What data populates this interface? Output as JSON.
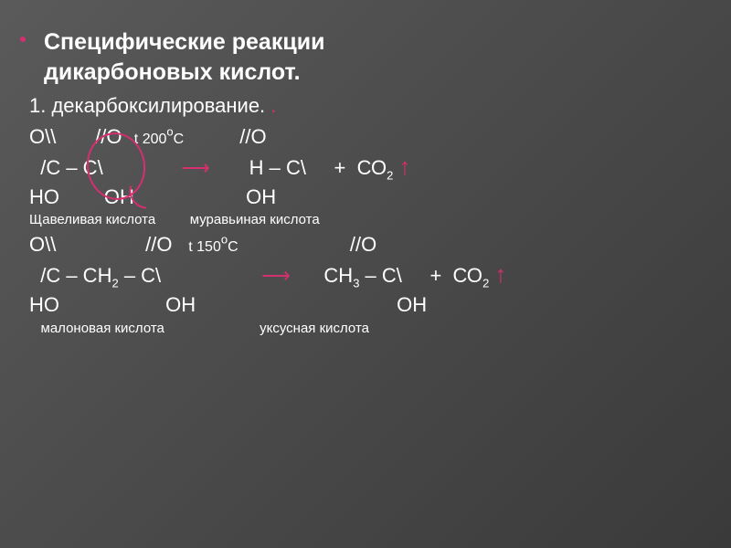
{
  "title_line1": "Специфические реакции",
  "title_line2": "дикарбоновых кислот.",
  "subtitle": "1. декарбоксилирование.",
  "reaction1": {
    "row1_left": "O\\\\       //O",
    "row1_cond": "   t 200",
    "row1_deg": "о",
    "row1_c": "С",
    "row1_right": "          //O",
    "row2_left": "  /С – С\\",
    "row2_arrow": "              ",
    "row2_right": "       H – С\\     +  СО",
    "row2_co2sub": "2",
    "row3": "НО        ОН                    ОН",
    "label_left": "Щавеливая кислота",
    "label_right": "         муравьиная кислота"
  },
  "reaction2": {
    "row1_left": "O\\\\                //O",
    "row1_cond": "    t 150",
    "row1_deg": "о",
    "row1_c": "С",
    "row1_right": "                    //O",
    "row2_left": "  /С – СН",
    "row2_h2sub": "2",
    "row2_mid": " – С\\ ",
    "row2_arrow": "                 ",
    "row2_right": "      СН",
    "row2_ch3sub": "3",
    "row2_right2": " – С\\     +  СО",
    "row2_co2sub": "2",
    "row3": "НО                   ОН                                    ОН",
    "label_left": "   малоновая кислота",
    "label_right": "                         уксусная кислота"
  },
  "colors": {
    "accent": "#d62f6f",
    "text": "#ffffff",
    "bg_start": "#5a5a5a",
    "bg_end": "#3a3a3a"
  }
}
